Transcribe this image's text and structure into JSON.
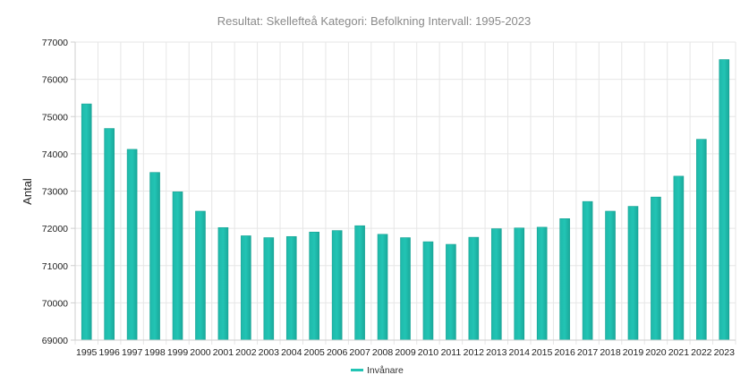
{
  "chart_data": {
    "type": "bar",
    "title": "Resultat: Skellefteå Kategori: Befolkning Intervall: 1995-2023",
    "ylabel": "Antal",
    "xlabel": "",
    "ylim": [
      69000,
      77000
    ],
    "yticks": [
      69000,
      70000,
      71000,
      72000,
      73000,
      74000,
      75000,
      76000,
      77000
    ],
    "grid": true,
    "legend_position": "bottom",
    "categories": [
      "1995",
      "1996",
      "1997",
      "1998",
      "1999",
      "2000",
      "2001",
      "2002",
      "2003",
      "2004",
      "2005",
      "2006",
      "2007",
      "2008",
      "2009",
      "2010",
      "2011",
      "2012",
      "2013",
      "2014",
      "2015",
      "2016",
      "2017",
      "2018",
      "2019",
      "2020",
      "2021",
      "2022",
      "2023"
    ],
    "series": [
      {
        "name": "Invånare",
        "color": "#22c4b4",
        "values": [
          75340,
          74680,
          74120,
          73500,
          72980,
          72460,
          72020,
          71800,
          71750,
          71780,
          71900,
          71940,
          72070,
          71840,
          71750,
          71640,
          71570,
          71760,
          71990,
          72010,
          72030,
          72260,
          72720,
          72460,
          72590,
          72840,
          73400,
          74390,
          76530
        ]
      }
    ]
  }
}
